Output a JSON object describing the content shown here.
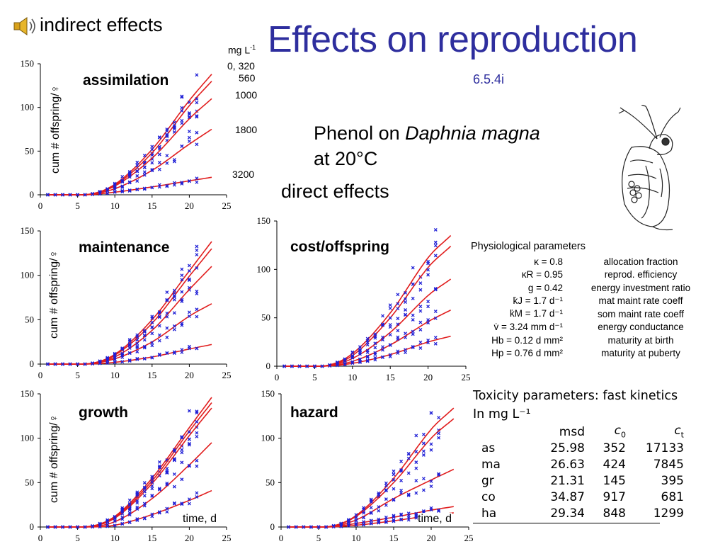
{
  "slide": {
    "title": "Effects on reproduction",
    "subtitle": "6.5.4i",
    "indirect_label": "indirect effects",
    "direct_label": "direct effects",
    "phenol_line1_pre": "Phenol on ",
    "phenol_line1_italic": "Daphnia magna",
    "phenol_line2": "at 20°C",
    "speaker_icon": "speaker-icon",
    "daphnia_icon": "daphnia-drawing",
    "concentration_unit": "mg L",
    "concentration_unit_exp": "-1",
    "concentrations": [
      "0, 320",
      "560",
      "1000",
      "1800",
      "3200"
    ],
    "y_axis_label": "cum # offspring/♀",
    "x_axis_label": "time, d",
    "colors": {
      "title": "#2e2e9e",
      "curve": "#e11d1d",
      "points": "#1f1fd6"
    }
  },
  "physiological": {
    "heading": "Physiological parameters",
    "rows": [
      {
        "symbol": "κ = 0.8",
        "desc": "allocation fraction"
      },
      {
        "symbol": "κR = 0.95",
        "desc": "reprod. efficiency"
      },
      {
        "symbol": "g = 0.42",
        "desc": "energy investment ratio"
      },
      {
        "symbol": "k̇J = 1.7 d⁻¹",
        "desc": "mat maint rate coeff"
      },
      {
        "symbol": "k̇M = 1.7 d⁻¹",
        "desc": "som maint rate coeff"
      },
      {
        "symbol": "v̇ = 3.24 mm d⁻¹",
        "desc": "energy conductance"
      },
      {
        "symbol": "Hb = 0.12 d mm²",
        "desc": "maturity at birth"
      },
      {
        "symbol": "Hp = 0.76 d mm²",
        "desc": "maturity at puberty"
      }
    ]
  },
  "toxicity": {
    "heading": "Toxicity parameters: fast kinetics",
    "unit": "In mg L⁻¹",
    "columns": [
      "",
      "msd",
      "c0",
      "ct"
    ],
    "rows": [
      [
        "as",
        "25.98",
        "352",
        "17133"
      ],
      [
        "ma",
        "26.63",
        "424",
        "7845"
      ],
      [
        "gr",
        "21.31",
        "145",
        "395"
      ],
      [
        "co",
        "34.87",
        "917",
        "681"
      ],
      [
        "ha",
        "29.34",
        "848",
        "1299"
      ]
    ]
  },
  "chart_data": [
    {
      "type": "line",
      "title": "assimilation",
      "ylabel": "cum # offspring/♀",
      "xlim": [
        0,
        25
      ],
      "ylim": [
        0,
        150
      ],
      "xticks": [
        0,
        5,
        10,
        15,
        20,
        25
      ],
      "yticks": [
        0,
        50,
        100,
        150
      ],
      "series": [
        {
          "name": "0, 320",
          "x": [
            6,
            10,
            15,
            20,
            23
          ],
          "y": [
            0,
            12,
            52,
            108,
            138
          ]
        },
        {
          "name": "560",
          "x": [
            6,
            10,
            15,
            20,
            23
          ],
          "y": [
            0,
            11,
            48,
            102,
            130
          ]
        },
        {
          "name": "1000",
          "x": [
            6,
            10,
            15,
            20,
            23
          ],
          "y": [
            0,
            10,
            42,
            87,
            110
          ]
        },
        {
          "name": "1800",
          "x": [
            6,
            10,
            15,
            20,
            23
          ],
          "y": [
            0,
            7,
            28,
            58,
            75
          ]
        },
        {
          "name": "3200",
          "x": [
            6,
            10,
            15,
            20,
            23
          ],
          "y": [
            0,
            3,
            9,
            16,
            20
          ]
        }
      ]
    },
    {
      "type": "line",
      "title": "maintenance",
      "ylabel": "cum # offspring/♀",
      "xlim": [
        0,
        25
      ],
      "ylim": [
        0,
        150
      ],
      "xticks": [
        0,
        5,
        10,
        15,
        20,
        25
      ],
      "yticks": [
        0,
        50,
        100,
        150
      ],
      "series": [
        {
          "name": "0, 320",
          "x": [
            6,
            10,
            15,
            20,
            23
          ],
          "y": [
            0,
            11,
            50,
            105,
            138
          ]
        },
        {
          "name": "560",
          "x": [
            6,
            10,
            15,
            20,
            23
          ],
          "y": [
            0,
            10,
            46,
            99,
            130
          ]
        },
        {
          "name": "1000",
          "x": [
            6,
            10,
            15,
            20,
            23
          ],
          "y": [
            0,
            8,
            38,
            84,
            110
          ]
        },
        {
          "name": "1800",
          "x": [
            6,
            10,
            15,
            20,
            23
          ],
          "y": [
            0,
            6,
            25,
            54,
            68
          ]
        },
        {
          "name": "3200",
          "x": [
            6,
            10,
            15,
            20,
            23
          ],
          "y": [
            0,
            2,
            8,
            17,
            22
          ]
        }
      ]
    },
    {
      "type": "line",
      "title": "cost/offspring",
      "xlim": [
        0,
        25
      ],
      "ylim": [
        0,
        150
      ],
      "xticks": [
        0,
        5,
        10,
        15,
        20,
        25
      ],
      "yticks": [
        0,
        50,
        100,
        150
      ],
      "series": [
        {
          "name": "0, 320",
          "x": [
            6,
            10,
            15,
            20,
            23
          ],
          "y": [
            0,
            13,
            55,
            112,
            135
          ]
        },
        {
          "name": "560",
          "x": [
            6,
            10,
            15,
            20,
            23
          ],
          "y": [
            0,
            11,
            50,
            102,
            124
          ]
        },
        {
          "name": "1000",
          "x": [
            6,
            10,
            15,
            20,
            23
          ],
          "y": [
            0,
            8,
            35,
            73,
            90
          ]
        },
        {
          "name": "1800",
          "x": [
            6,
            10,
            15,
            20,
            23
          ],
          "y": [
            0,
            5,
            22,
            46,
            58
          ]
        },
        {
          "name": "3200",
          "x": [
            6,
            10,
            15,
            20,
            23
          ],
          "y": [
            0,
            3,
            12,
            25,
            31
          ]
        }
      ]
    },
    {
      "type": "line",
      "title": "growth",
      "ylabel": "cum # offspring/♀",
      "xlabel": "time, d",
      "xlim": [
        0,
        25
      ],
      "ylim": [
        0,
        150
      ],
      "xticks": [
        0,
        5,
        10,
        15,
        20,
        25
      ],
      "yticks": [
        0,
        50,
        100,
        150
      ],
      "series": [
        {
          "name": "0, 320",
          "x": [
            6,
            10,
            15,
            20,
            23
          ],
          "y": [
            0,
            12,
            55,
            112,
            146
          ]
        },
        {
          "name": "560",
          "x": [
            6,
            10,
            15,
            20,
            23
          ],
          "y": [
            0,
            11,
            52,
            108,
            140
          ]
        },
        {
          "name": "1000",
          "x": [
            6,
            10,
            15,
            20,
            23
          ],
          "y": [
            0,
            10,
            49,
            103,
            134
          ]
        },
        {
          "name": "1800",
          "x": [
            6,
            10,
            15,
            20,
            23
          ],
          "y": [
            0,
            6,
            32,
            70,
            95
          ]
        },
        {
          "name": "3200",
          "x": [
            6,
            10,
            15,
            20,
            23
          ],
          "y": [
            0,
            2,
            14,
            30,
            41
          ]
        }
      ]
    },
    {
      "type": "line",
      "title": "hazard",
      "xlabel": "time, d",
      "xlim": [
        0,
        25
      ],
      "ylim": [
        0,
        150
      ],
      "xticks": [
        0,
        5,
        10,
        15,
        20,
        25
      ],
      "yticks": [
        0,
        50,
        100,
        150
      ],
      "series": [
        {
          "name": "0, 320",
          "x": [
            6,
            10,
            15,
            20,
            23
          ],
          "y": [
            0,
            13,
            55,
            110,
            134
          ]
        },
        {
          "name": "560",
          "x": [
            6,
            10,
            15,
            20,
            23
          ],
          "y": [
            0,
            12,
            50,
            100,
            122
          ]
        },
        {
          "name": "1000",
          "x": [
            6,
            10,
            15,
            20,
            23
          ],
          "y": [
            0,
            8,
            32,
            53,
            65
          ]
        },
        {
          "name": "1800",
          "x": [
            6,
            10,
            15,
            20,
            23
          ],
          "y": [
            0,
            4,
            11,
            19,
            23
          ]
        },
        {
          "name": "3200",
          "x": [
            6,
            10,
            15,
            20,
            23
          ],
          "y": [
            0,
            2,
            7,
            13,
            16
          ]
        }
      ]
    }
  ]
}
